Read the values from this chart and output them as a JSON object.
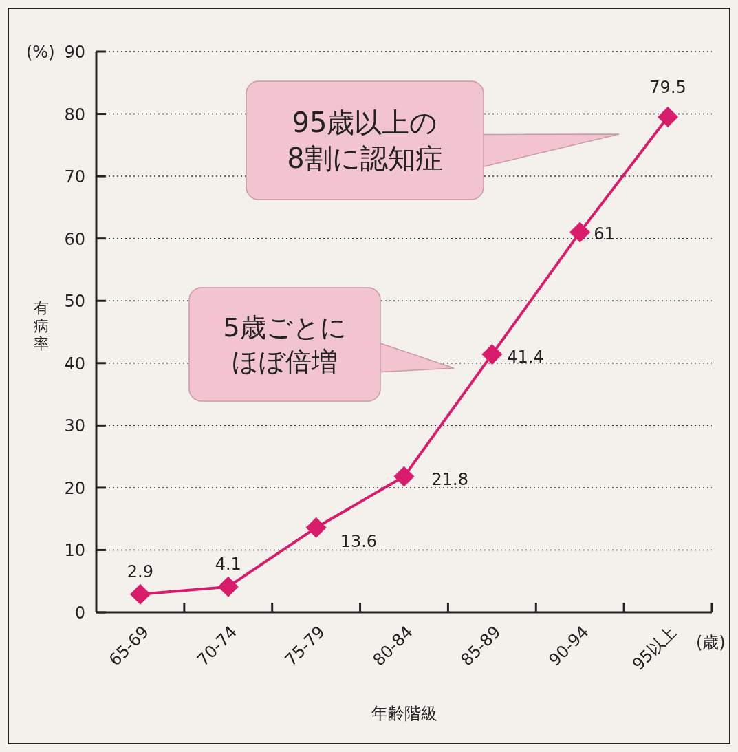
{
  "chart_data": {
    "type": "line",
    "xlabel": "年齢階級",
    "ylabel": "有病率",
    "categories": [
      "65-69",
      "70-74",
      "75-79",
      "80-84",
      "85-89",
      "90-94",
      "95以上"
    ],
    "series": [
      {
        "color": "#d81b6a",
        "values": [
          2.9,
          4.1,
          13.6,
          21.8,
          41.4,
          61,
          79.5
        ]
      }
    ],
    "ylim": [
      0,
      90
    ],
    "yticks": [
      0,
      10,
      20,
      30,
      40,
      50,
      60,
      70,
      80,
      90
    ],
    "grid": "y",
    "marker": "diamond",
    "line_style": "solid",
    "data_labels": true,
    "annotations": [
      "(%)",
      "(歳)",
      "95歳以上の",
      "8割に認知症",
      "5歳ごとに",
      "ほぼ倍増"
    ]
  }
}
